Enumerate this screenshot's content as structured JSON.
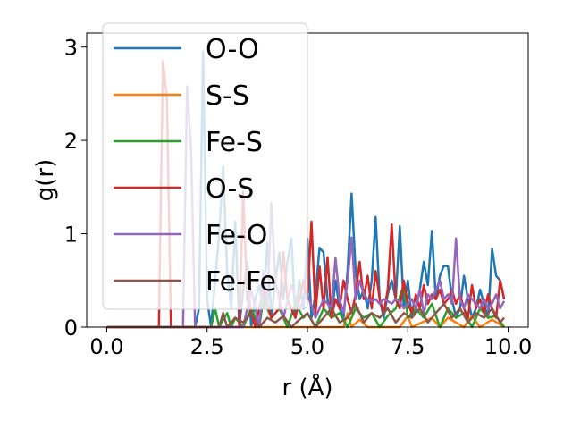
{
  "chart_data": {
    "type": "line",
    "title": "",
    "xlabel": "r (Å)",
    "ylabel": "g(r)",
    "xlim": [
      -0.5,
      10.5
    ],
    "ylim": [
      0,
      3.15
    ],
    "xticks": [
      "0.0",
      "2.5",
      "5.0",
      "7.5",
      "10.0"
    ],
    "xtick_values": [
      0,
      2.5,
      5,
      7.5,
      10
    ],
    "yticks": [
      "0",
      "1",
      "2",
      "3"
    ],
    "ytick_values": [
      0,
      1,
      2,
      3
    ],
    "grid": false,
    "legend_position": "upper-left",
    "legend_frame": true,
    "series": [
      {
        "name": "O-O",
        "color": "#1f77b4",
        "x": [
          0,
          2.2,
          2.3,
          2.4,
          2.5,
          2.6,
          2.7,
          2.8,
          2.9,
          3.0,
          3.1,
          3.2,
          3.3,
          3.4,
          3.5,
          3.6,
          3.7,
          3.8,
          3.9,
          4.0,
          4.1,
          4.2,
          4.3,
          4.4,
          4.5,
          4.6,
          4.7,
          4.8,
          4.9,
          5.0,
          5.1,
          5.2,
          5.3,
          5.4,
          5.5,
          5.6,
          5.7,
          5.8,
          5.9,
          6.0,
          6.1,
          6.2,
          6.3,
          6.4,
          6.5,
          6.6,
          6.7,
          6.8,
          6.9,
          7.0,
          7.1,
          7.2,
          7.3,
          7.4,
          7.5,
          7.6,
          7.7,
          7.8,
          7.9,
          8.0,
          8.1,
          8.2,
          8.3,
          8.4,
          8.5,
          8.6,
          8.7,
          8.8,
          8.9,
          9.0,
          9.1,
          9.2,
          9.3,
          9.4,
          9.5,
          9.6,
          9.7,
          9.8,
          9.9
        ],
        "y": [
          0,
          0,
          0.2,
          2.95,
          0.3,
          0,
          0.5,
          1.0,
          1.72,
          0.6,
          0.2,
          1.13,
          0,
          0.4,
          0.7,
          0,
          0.3,
          0.45,
          0.2,
          0.9,
          0.1,
          0.5,
          0.8,
          0.3,
          0.7,
          0.95,
          0.1,
          0.5,
          0.2,
          0.95,
          0.1,
          0.35,
          0.85,
          0.8,
          0.3,
          0.1,
          0.5,
          0.2,
          0.1,
          0.6,
          1.43,
          0.6,
          0.3,
          0.4,
          0.2,
          0.5,
          1.18,
          0.3,
          0.1,
          0.35,
          0.5,
          0.3,
          1.08,
          0.2,
          0.5,
          0.1,
          0.2,
          0.4,
          0.7,
          0.45,
          1.03,
          0.3,
          0.55,
          0.66,
          0.65,
          0.3,
          0.1,
          0.2,
          0.55,
          0.3,
          0.1,
          0.2,
          0.4,
          0.25,
          0.1,
          0.84,
          0.55,
          0.5,
          0.3
        ]
      },
      {
        "name": "S-S",
        "color": "#ff7f0e",
        "x": [
          0,
          5.9,
          6.0,
          6.1,
          6.3,
          6.5,
          7.3,
          7.5,
          7.6,
          8.1,
          8.3,
          8.5,
          8.9,
          9.1,
          9.3,
          9.6,
          9.9
        ],
        "y": [
          0,
          0,
          0.15,
          0,
          0.08,
          0,
          0,
          0.12,
          0,
          0.1,
          0,
          0.1,
          0,
          0.12,
          0,
          0.08,
          0
        ]
      },
      {
        "name": "Fe-S",
        "color": "#2ca02c",
        "x": [
          0,
          2.6,
          2.7,
          2.8,
          3.0,
          3.1,
          3.2,
          3.4,
          3.6,
          3.8,
          3.9,
          4.1,
          4.3,
          4.5,
          4.7,
          4.9,
          5.0,
          5.2,
          5.4,
          5.6,
          5.8,
          6.0,
          6.2,
          6.4,
          6.6,
          6.8,
          7.0,
          7.2,
          7.4,
          7.5,
          7.7,
          7.9,
          8.1,
          8.3,
          8.5,
          8.7,
          8.9,
          9.1,
          9.3,
          9.5,
          9.7,
          9.9
        ],
        "y": [
          0,
          0,
          0.2,
          0,
          0.15,
          0,
          0.1,
          0,
          0.2,
          0,
          0.3,
          0.1,
          0.2,
          0,
          0.25,
          0.1,
          0.15,
          0,
          0.2,
          0.1,
          0.15,
          0,
          0.2,
          0.1,
          0.15,
          0,
          0.12,
          0.2,
          0.45,
          0.1,
          0.2,
          0.1,
          0.25,
          0,
          0.2,
          0.1,
          0.15,
          0,
          0.2,
          0.1,
          0.12,
          0
        ]
      },
      {
        "name": "O-S",
        "color": "#d62728",
        "x": [
          0,
          1.3,
          1.4,
          1.5,
          1.6,
          3.3,
          3.4,
          3.5,
          3.7,
          3.9,
          4.1,
          4.3,
          4.4,
          4.5,
          4.7,
          4.9,
          5.0,
          5.1,
          5.2,
          5.3,
          5.4,
          5.5,
          5.6,
          5.7,
          5.8,
          5.9,
          6.0,
          6.1,
          6.2,
          6.3,
          6.4,
          6.5,
          6.6,
          6.7,
          6.8,
          6.9,
          7.0,
          7.1,
          7.2,
          7.3,
          7.4,
          7.5,
          7.6,
          7.7,
          7.8,
          7.9,
          8.0,
          8.1,
          8.2,
          8.3,
          8.4,
          8.5,
          8.6,
          8.7,
          8.8,
          8.9,
          9.0,
          9.1,
          9.2,
          9.3,
          9.4,
          9.5,
          9.6,
          9.7,
          9.8,
          9.9
        ],
        "y": [
          0,
          0,
          2.85,
          2.45,
          0,
          0,
          1.45,
          0.3,
          0,
          0.4,
          0.1,
          0.2,
          0.8,
          0.3,
          0.1,
          0.5,
          0.3,
          1.13,
          0.15,
          0.65,
          0.2,
          0.75,
          0.1,
          0.3,
          0.2,
          0.5,
          0.3,
          0.15,
          0.35,
          0.7,
          0.3,
          0.55,
          0.2,
          0.6,
          0.3,
          0.15,
          0.4,
          1.1,
          0.3,
          0.2,
          0.5,
          0.25,
          0.15,
          0.35,
          0.2,
          0.45,
          0.25,
          0.35,
          0.3,
          0.4,
          0.25,
          0.3,
          0.4,
          0.25,
          0.35,
          0.2,
          0.1,
          0.45,
          0.2,
          0.3,
          0.15,
          0.35,
          0.2,
          0.1,
          0.5,
          0.3
        ]
      },
      {
        "name": "Fe-O",
        "color": "#9467bd",
        "x": [
          0,
          1.9,
          2.0,
          2.1,
          2.2,
          3.4,
          3.6,
          3.8,
          3.9,
          4.0,
          4.1,
          4.2,
          4.3,
          4.4,
          4.6,
          4.8,
          5.0,
          5.2,
          5.4,
          5.6,
          5.7,
          5.8,
          5.9,
          6.0,
          6.1,
          6.2,
          6.3,
          6.4,
          6.5,
          6.6,
          6.7,
          6.8,
          6.9,
          7.0,
          7.1,
          7.2,
          7.3,
          7.4,
          7.5,
          7.6,
          7.7,
          7.8,
          7.9,
          8.0,
          8.1,
          8.2,
          8.3,
          8.4,
          8.5,
          8.6,
          8.7,
          8.8,
          8.9,
          9.0,
          9.1,
          9.2,
          9.3,
          9.4,
          9.5,
          9.6,
          9.7,
          9.8,
          9.9
        ],
        "y": [
          0,
          0,
          2.58,
          1.9,
          0,
          0,
          0.4,
          0,
          0.6,
          0.2,
          1.33,
          0.5,
          0.3,
          0.1,
          0.45,
          0.2,
          0.35,
          0.1,
          0.3,
          0.2,
          0.74,
          0.3,
          0.15,
          0.5,
          0.96,
          0.3,
          0.5,
          0.35,
          0.3,
          0.28,
          0.3,
          0.25,
          0.3,
          0.28,
          0.25,
          0.3,
          0.27,
          0.2,
          0.25,
          0.3,
          0.2,
          0.4,
          0.15,
          0.35,
          0.3,
          0.4,
          0.5,
          0.3,
          0.35,
          0.25,
          0.95,
          0.3,
          0.2,
          0.35,
          0.3,
          0.25,
          0.2,
          0.3,
          0.2,
          0.25,
          0.35,
          0.2,
          0.28
        ]
      },
      {
        "name": "Fe-Fe",
        "color": "#8c564b",
        "x": [
          0,
          2.8,
          2.9,
          3.0,
          3.2,
          3.4,
          3.6,
          3.8,
          4.0,
          4.2,
          4.4,
          4.6,
          4.8,
          5.0,
          5.2,
          5.4,
          5.6,
          5.8,
          6.0,
          6.2,
          6.4,
          6.6,
          6.8,
          7.0,
          7.2,
          7.4,
          7.6,
          7.8,
          8.0,
          8.2,
          8.4,
          8.6,
          8.8,
          9.0,
          9.2,
          9.4,
          9.6,
          9.8,
          9.9
        ],
        "y": [
          0,
          0,
          0.15,
          0,
          0.1,
          0.05,
          0.15,
          0,
          0.1,
          0.05,
          0.12,
          0,
          0.08,
          0.15,
          0,
          0.1,
          0.2,
          0.05,
          0.1,
          0.25,
          0.05,
          0.15,
          0.1,
          0.2,
          0.05,
          0.15,
          0.1,
          0.2,
          0.05,
          0.15,
          0.25,
          0.1,
          0.2,
          0.05,
          0.15,
          0.1,
          0.2,
          0.05,
          0.1
        ]
      }
    ]
  }
}
